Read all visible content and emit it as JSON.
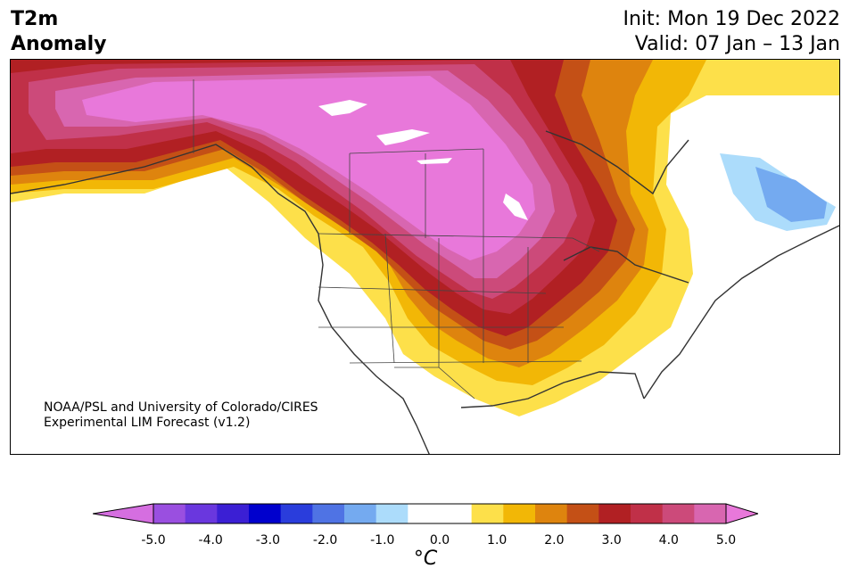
{
  "header": {
    "title_line1": "T2m",
    "title_line2": "Anomaly",
    "init": "Init: Mon 19 Dec 2022",
    "valid": "Valid: 07 Jan – 13 Jan"
  },
  "credit": {
    "line1": "NOAA/PSL and University of Colorado/CIRES",
    "line2": "Experimental LIM Forecast (v1.2)"
  },
  "colorbar": {
    "unit": "°C",
    "ticks": [
      "-5.0",
      "-4.0",
      "-3.0",
      "-2.0",
      "-1.0",
      "0.0",
      "1.0",
      "2.0",
      "3.0",
      "4.0",
      "5.0"
    ],
    "colors": [
      "#d56ee0",
      "#9a4fe0",
      "#6a37de",
      "#3b1fd4",
      "#0000cd",
      "#2a3ddc",
      "#4f73e4",
      "#74aaf0",
      "#acdcfb",
      "#ffffff",
      "#ffffff",
      "#fde04a",
      "#f2b706",
      "#de840e",
      "#c45016",
      "#b12023",
      "#c03048",
      "#cc4a7a",
      "#d866b0",
      "#e878da"
    ],
    "under_color": "#d56ee0",
    "over_color": "#e878da"
  }
}
